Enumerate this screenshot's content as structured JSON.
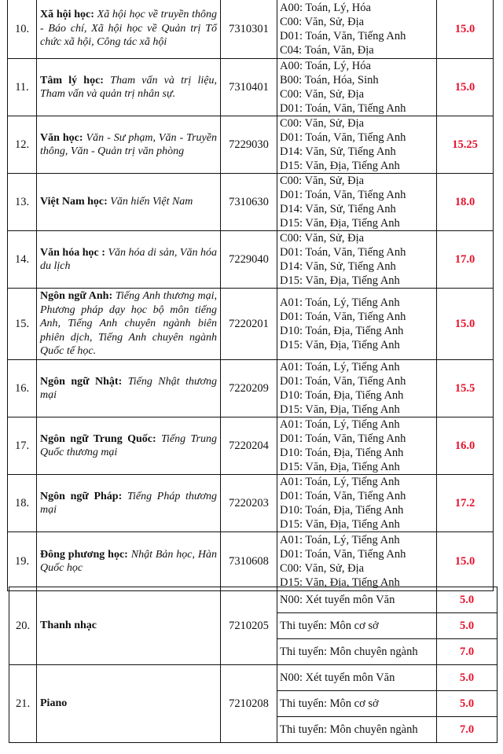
{
  "colors": {
    "score": "#e8112d"
  },
  "table_main": [
    {
      "num": "10.",
      "major": "Xã hội học:",
      "detail": "Xã hội học về truyền thông - Báo chí, Xã hội học về Quản trị Tổ chức xã hội, Công tác xã hội",
      "code": "7310301",
      "combos": [
        "A00: Toán, Lý, Hóa",
        "C00: Văn, Sử, Địa",
        "D01: Toán, Văn, Tiếng Anh",
        "C04: Toán, Văn, Địa"
      ],
      "score": "15.0"
    },
    {
      "num": "11.",
      "major": "Tâm lý học:",
      "detail": "Tham vấn và trị liệu, Tham vấn và quản trị nhân sự.",
      "code": "7310401",
      "combos": [
        "A00: Toán, Lý, Hóa",
        "B00: Toán, Hóa, Sinh",
        "C00: Văn, Sử, Địa",
        "D01: Toán, Văn, Tiếng Anh"
      ],
      "score": "15.0"
    },
    {
      "num": "12.",
      "major": "Văn học:",
      "detail": "Văn - Sư phạm, Văn - Truyền thông, Văn - Quản trị văn phòng",
      "code": "7229030",
      "combos": [
        "C00: Văn, Sử, Địa",
        "D01: Toán, Văn, Tiếng Anh",
        "D14: Văn, Sử, Tiếng Anh",
        "D15: Văn, Địa, Tiếng Anh"
      ],
      "score": "15.25"
    },
    {
      "num": "13.",
      "major": "Việt Nam học:",
      "detail": "Văn hiến Việt Nam",
      "code": "7310630",
      "combos": [
        "C00: Văn, Sử, Địa",
        "D01: Toán, Văn, Tiếng Anh",
        "D14: Văn, Sử, Tiếng Anh",
        "D15: Văn, Địa, Tiếng Anh"
      ],
      "score": "18.0"
    },
    {
      "num": "14.",
      "major": "Văn hóa học :",
      "detail": "Văn hóa di sản, Văn hóa du lịch",
      "code": "7229040",
      "combos": [
        "C00: Văn, Sử, Địa",
        "D01: Toán, Văn, Tiếng Anh",
        "D14: Văn, Sử, Tiếng Anh",
        "D15: Văn, Địa, Tiếng Anh"
      ],
      "score": "17.0"
    },
    {
      "num": "15.",
      "major": "Ngôn ngữ Anh:",
      "detail": "Tiếng Anh thương mại, Phương pháp dạy học bộ môn tiếng Anh, Tiếng Anh chuyên ngành biên phiên dịch, Tiếng Anh chuyên ngành Quốc tế học.",
      "code": "7220201",
      "combos": [
        "A01: Toán, Lý, Tiếng Anh",
        "D01: Toán, Văn, Tiếng Anh",
        "D10: Toán, Địa, Tiếng Anh",
        "D15: Văn, Địa, Tiếng Anh"
      ],
      "score": "15.0"
    },
    {
      "num": "16.",
      "major": "Ngôn ngữ Nhật:",
      "detail": "Tiếng Nhật thương mại",
      "code": "7220209",
      "combos": [
        "A01: Toán, Lý, Tiếng Anh",
        "D01: Toán, Văn, Tiếng Anh",
        "D10: Toán, Địa, Tiếng Anh",
        "D15: Văn, Địa, Tiếng Anh"
      ],
      "score": "15.5"
    },
    {
      "num": "17.",
      "major": "Ngôn ngữ Trung Quốc:",
      "detail": "Tiếng Trung Quốc thương mại",
      "code": "7220204",
      "combos": [
        "A01: Toán, Lý, Tiếng Anh",
        "D01: Toán, Văn, Tiếng Anh",
        "D10: Toán, Địa, Tiếng Anh",
        "D15: Văn, Địa, Tiếng Anh"
      ],
      "score": "16.0"
    },
    {
      "num": "18.",
      "major": "Ngôn ngữ Pháp:",
      "detail": "Tiếng Pháp thương mại",
      "code": "7220203",
      "combos": [
        "A01: Toán, Lý, Tiếng Anh",
        "D01: Toán, Văn, Tiếng Anh",
        "D10: Toán, Địa, Tiếng Anh",
        "D15: Văn, Địa, Tiếng Anh"
      ],
      "score": "17.2"
    },
    {
      "num": "19.",
      "major": "Đông phương học:",
      "detail": "Nhật Bản học, Hàn Quốc học",
      "code": "7310608",
      "combos": [
        "A01: Toán, Lý, Tiếng Anh",
        "D01: Toán, Văn, Tiếng Anh",
        "C00: Văn, Sử, Địa",
        "D15: Văn, Địa, Tiếng Anh"
      ],
      "score": "15.0"
    }
  ],
  "table_arts": [
    {
      "num": "20.",
      "major": "Thanh nhạc",
      "code": "7210205",
      "subs": [
        {
          "combo": "N00: Xét tuyển môn Văn",
          "score": "5.0"
        },
        {
          "combo": "Thi tuyển: Môn cơ sở",
          "score": "5.0"
        },
        {
          "combo": "Thi tuyển: Môn chuyên ngành",
          "score": "7.0"
        }
      ]
    },
    {
      "num": "21.",
      "major": "Piano",
      "code": "7210208",
      "subs": [
        {
          "combo": "N00: Xét tuyển môn Văn",
          "score": "5.0"
        },
        {
          "combo": "Thi tuyển: Môn cơ sở",
          "score": "5.0"
        },
        {
          "combo": "Thi tuyển: Môn chuyên ngành",
          "score": "7.0"
        }
      ]
    }
  ]
}
